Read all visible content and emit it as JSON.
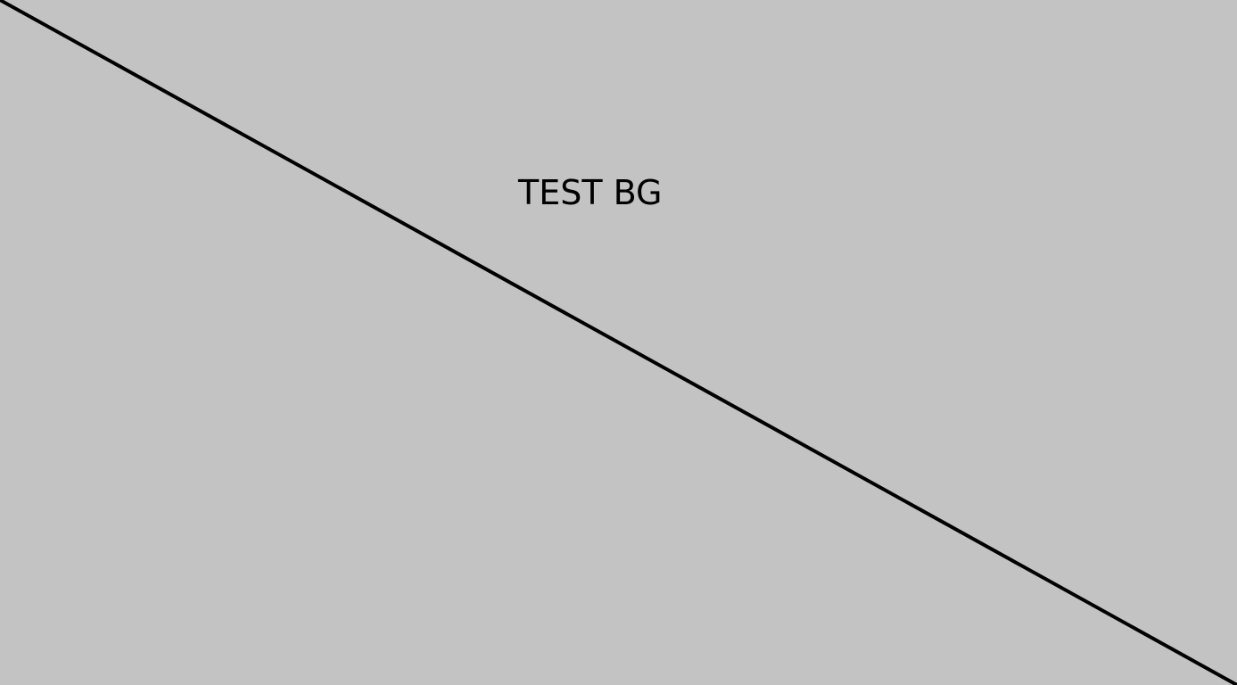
{
  "background": {
    "color": "#c3c3c3",
    "label": "TEST BG"
  },
  "line": {
    "color": "#000000"
  }
}
